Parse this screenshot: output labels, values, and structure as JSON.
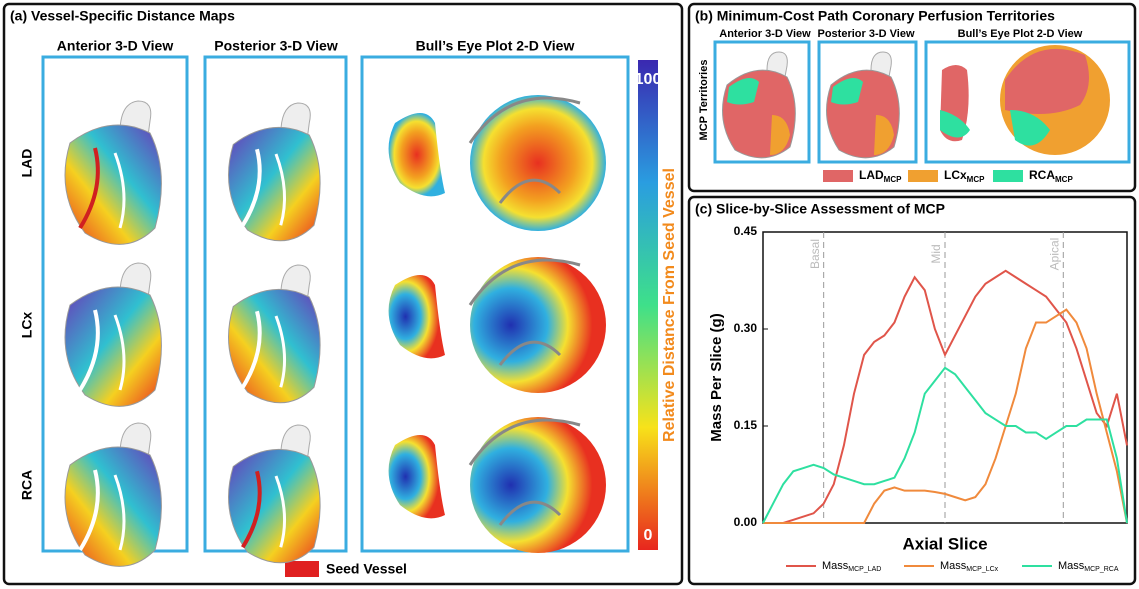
{
  "panel_a": {
    "title": "(a) Vessel-Specific Distance Maps",
    "columns": [
      "Anterior 3-D View",
      "Posterior 3-D View",
      "Bull’s Eye Plot 2-D View"
    ],
    "rows": [
      "LAD",
      "LCx",
      "RCA"
    ],
    "colorbar": {
      "title": "Relative Distance From Seed Vessel",
      "max": 100,
      "min": 0
    },
    "legend": "Seed Vessel"
  },
  "panel_b": {
    "title": "(b) Minimum-Cost Path Coronary Perfusion Territories",
    "columns": [
      "Anterior 3-D View",
      "Posterior 3-D View",
      "Bull’s Eye Plot 2-D View"
    ],
    "row_label": "MCP Territories",
    "legend": [
      {
        "name": "LAD",
        "sub": "MCP",
        "color": "#e06666"
      },
      {
        "name": "LCx",
        "sub": "MCP",
        "color": "#f0a030"
      },
      {
        "name": "RCA",
        "sub": "MCP",
        "color": "#2ee0a0"
      }
    ]
  },
  "chart_data": {
    "type": "line",
    "title": "(c) Slice-by-Slice Assessment of MCP",
    "x_label": "Axial Slice",
    "y_label": "Mass Per Slice (g)",
    "categories": [
      null,
      null,
      null,
      null,
      null,
      null,
      null,
      null,
      null,
      null,
      null,
      null,
      null,
      null,
      null,
      null,
      null,
      null,
      null,
      null,
      null,
      null,
      null,
      null,
      null,
      null,
      null,
      null,
      null,
      null,
      null,
      null,
      null,
      null,
      null,
      null,
      null
    ],
    "ylim": [
      0,
      0.45
    ],
    "yticks": [
      {
        "value": 0,
        "label": "0.00"
      },
      {
        "value": 0.15,
        "label": "0.15"
      },
      {
        "value": 0.3,
        "label": "0.30"
      },
      {
        "value": 0.45,
        "label": "0.45"
      }
    ],
    "annotations": [
      {
        "text": "Basal",
        "x": 6
      },
      {
        "text": "Mid",
        "x": 18
      },
      {
        "text": "Apical",
        "x": 29.7
      }
    ],
    "series": [
      {
        "name": "Mass",
        "sub": "MCP_LAD",
        "color": "#e0554a",
        "values": [
          0,
          0,
          0,
          0.005,
          0.01,
          0.015,
          0.03,
          0.06,
          0.12,
          0.2,
          0.26,
          0.28,
          0.29,
          0.31,
          0.35,
          0.38,
          0.36,
          0.3,
          0.26,
          0.29,
          0.32,
          0.35,
          0.37,
          0.38,
          0.39,
          0.38,
          0.37,
          0.36,
          0.35,
          0.33,
          0.31,
          0.27,
          0.22,
          0.17,
          0.15,
          0.2,
          0.12
        ]
      },
      {
        "name": "Mass",
        "sub": "MCP_LCx",
        "color": "#f08a3c",
        "values": [
          0,
          0,
          0,
          0,
          0,
          0,
          0,
          0,
          0,
          0,
          0,
          0.03,
          0.05,
          0.055,
          0.05,
          0.05,
          0.05,
          0.048,
          0.045,
          0.04,
          0.035,
          0.04,
          0.06,
          0.1,
          0.15,
          0.2,
          0.27,
          0.31,
          0.31,
          0.32,
          0.33,
          0.31,
          0.27,
          0.2,
          0.14,
          0.08,
          0
        ]
      },
      {
        "name": "Mass",
        "sub": "MCP_RCA",
        "color": "#2ee0a0",
        "values": [
          0,
          0.03,
          0.06,
          0.08,
          0.085,
          0.09,
          0.085,
          0.075,
          0.07,
          0.065,
          0.06,
          0.06,
          0.065,
          0.07,
          0.1,
          0.14,
          0.2,
          0.22,
          0.24,
          0.23,
          0.21,
          0.19,
          0.17,
          0.16,
          0.15,
          0.15,
          0.14,
          0.14,
          0.13,
          0.14,
          0.15,
          0.15,
          0.16,
          0.16,
          0.16,
          0.1,
          0
        ]
      }
    ]
  }
}
